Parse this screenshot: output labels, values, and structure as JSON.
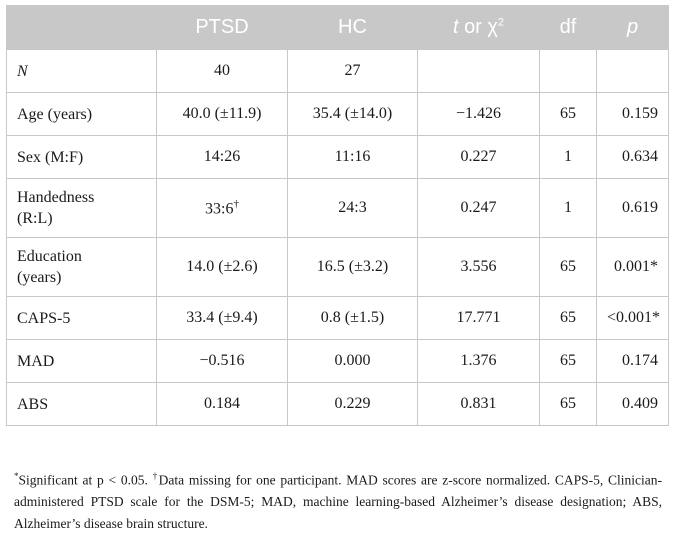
{
  "table": {
    "headers": {
      "ptsd": "PTSD",
      "hc": "HC",
      "t": "t",
      "or": "or",
      "chi": "χ",
      "chi_exp": "2",
      "df": "df",
      "p": "p"
    },
    "rows": [
      {
        "label": "N",
        "ptsd": "40",
        "hc": "27",
        "t": "",
        "df": "",
        "p": ""
      },
      {
        "label": "Age (years)",
        "ptsd": "40.0 (±11.9)",
        "hc": "35.4 (±14.0)",
        "t": "−1.426",
        "df": "65",
        "p": "0.159"
      },
      {
        "label": "Sex (M:F)",
        "ptsd": "14:26",
        "hc": "11:16",
        "t": "0.227",
        "df": "1",
        "p": "0.634"
      },
      {
        "label_line1": "Handedness",
        "label_line2": "(R:L)",
        "ptsd": "33:6",
        "ptsd_mark": "†",
        "hc": "24:3",
        "t": "0.247",
        "df": "1",
        "p": "0.619"
      },
      {
        "label_line1": "Education",
        "label_line2": "(years)",
        "ptsd": "14.0 (±2.6)",
        "hc": "16.5 (±3.2)",
        "t": "3.556",
        "df": "65",
        "p": "0.001*"
      },
      {
        "label": "CAPS-5",
        "ptsd": "33.4 (±9.4)",
        "hc": "0.8 (±1.5)",
        "t": "17.771",
        "df": "65",
        "p": "<0.001*"
      },
      {
        "label": "MAD",
        "ptsd": "−0.516",
        "hc": "0.000",
        "t": "1.376",
        "df": "65",
        "p": "0.174"
      },
      {
        "label": "ABS",
        "ptsd": "0.184",
        "hc": "0.229",
        "t": "0.831",
        "df": "65",
        "p": "0.409"
      }
    ]
  },
  "footnote": {
    "star": "*",
    "sig_text": "Significant at p < 0.05. ",
    "dagger": "†",
    "text": "Data missing for one participant. MAD scores are z-score normalized. CAPS-5, Clinician-administered PTSD scale for the DSM-5; MAD, machine learning-based Alzheimer’s disease designation; ABS, Alzheimer’s disease brain structure."
  },
  "colors": {
    "header_bg": "#c8c8c8",
    "header_text": "#ffffff",
    "grid": "#c8c8c8",
    "text": "#1a1a1a"
  }
}
